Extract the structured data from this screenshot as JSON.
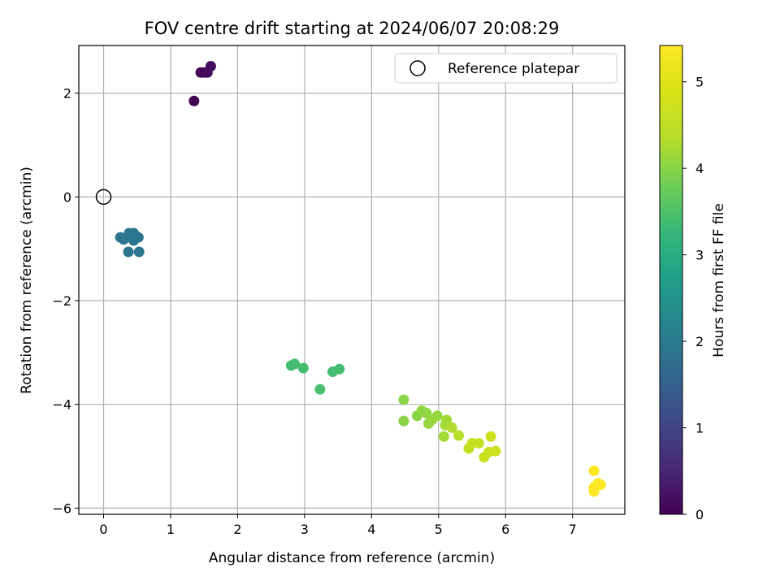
{
  "chart_data": {
    "type": "scatter",
    "title": "FOV centre drift starting at 2024/06/07 20:08:29",
    "xlabel": "Angular distance from reference (arcmin)",
    "ylabel": "Rotation from reference (arcmin)",
    "xlim": [
      -0.37,
      7.78
    ],
    "ylim": [
      -6.12,
      2.92
    ],
    "xticks": [
      0,
      1,
      2,
      3,
      4,
      5,
      6,
      7
    ],
    "yticks": [
      -6,
      -4,
      -2,
      0,
      2
    ],
    "ytick_labels": [
      "−6",
      "−4",
      "−2",
      "0",
      "2"
    ],
    "grid": true,
    "legend": {
      "placement": "top-right",
      "entries": [
        {
          "label": "Reference platepar",
          "marker": "open-circle"
        }
      ]
    },
    "reference_point": {
      "x": 0,
      "y": 0
    },
    "colorbar": {
      "label": "Hours from first FF file",
      "colormap": "viridis",
      "range": [
        0,
        5.42
      ],
      "ticks": [
        0,
        1,
        2,
        3,
        4,
        5
      ]
    },
    "points": [
      {
        "x": 1.35,
        "y": 1.85,
        "c": 0.0
      },
      {
        "x": 1.45,
        "y": 2.4,
        "c": 0.05
      },
      {
        "x": 1.5,
        "y": 2.4,
        "c": 0.1
      },
      {
        "x": 1.55,
        "y": 2.4,
        "c": 0.15
      },
      {
        "x": 1.6,
        "y": 2.52,
        "c": 0.2
      },
      {
        "x": 0.25,
        "y": -0.78,
        "c": 1.9
      },
      {
        "x": 0.3,
        "y": -0.82,
        "c": 1.9
      },
      {
        "x": 0.38,
        "y": -0.7,
        "c": 1.9
      },
      {
        "x": 0.45,
        "y": -0.7,
        "c": 1.9
      },
      {
        "x": 0.45,
        "y": -0.84,
        "c": 1.9
      },
      {
        "x": 0.52,
        "y": -0.78,
        "c": 1.9
      },
      {
        "x": 0.37,
        "y": -1.06,
        "c": 1.9
      },
      {
        "x": 0.53,
        "y": -1.06,
        "c": 1.9
      },
      {
        "x": 2.8,
        "y": -3.25,
        "c": 3.4
      },
      {
        "x": 2.85,
        "y": -3.22,
        "c": 3.4
      },
      {
        "x": 2.98,
        "y": -3.3,
        "c": 3.4
      },
      {
        "x": 3.42,
        "y": -3.37,
        "c": 3.4
      },
      {
        "x": 3.52,
        "y": -3.32,
        "c": 3.4
      },
      {
        "x": 3.23,
        "y": -3.71,
        "c": 3.45
      },
      {
        "x": 4.48,
        "y": -3.91,
        "c": 4.0
      },
      {
        "x": 4.48,
        "y": -4.32,
        "c": 4.0
      },
      {
        "x": 4.68,
        "y": -4.22,
        "c": 4.0
      },
      {
        "x": 4.75,
        "y": -4.12,
        "c": 4.05
      },
      {
        "x": 4.82,
        "y": -4.17,
        "c": 4.05
      },
      {
        "x": 4.85,
        "y": -4.37,
        "c": 4.1
      },
      {
        "x": 4.9,
        "y": -4.3,
        "c": 4.1
      },
      {
        "x": 4.98,
        "y": -4.22,
        "c": 4.1
      },
      {
        "x": 5.08,
        "y": -4.62,
        "c": 4.2
      },
      {
        "x": 5.1,
        "y": -4.4,
        "c": 4.2
      },
      {
        "x": 5.12,
        "y": -4.3,
        "c": 4.2
      },
      {
        "x": 5.2,
        "y": -4.45,
        "c": 4.3
      },
      {
        "x": 5.3,
        "y": -4.6,
        "c": 4.4
      },
      {
        "x": 5.45,
        "y": -4.85,
        "c": 4.55
      },
      {
        "x": 5.5,
        "y": -4.75,
        "c": 4.6
      },
      {
        "x": 5.6,
        "y": -4.75,
        "c": 4.6
      },
      {
        "x": 5.68,
        "y": -5.02,
        "c": 4.65
      },
      {
        "x": 5.75,
        "y": -4.92,
        "c": 4.65
      },
      {
        "x": 5.78,
        "y": -4.62,
        "c": 4.7
      },
      {
        "x": 5.85,
        "y": -4.9,
        "c": 4.7
      },
      {
        "x": 7.32,
        "y": -5.28,
        "c": 5.42
      },
      {
        "x": 7.32,
        "y": -5.6,
        "c": 5.42
      },
      {
        "x": 7.32,
        "y": -5.68,
        "c": 5.42
      },
      {
        "x": 7.38,
        "y": -5.52,
        "c": 5.42
      },
      {
        "x": 7.42,
        "y": -5.55,
        "c": 5.42
      }
    ]
  }
}
